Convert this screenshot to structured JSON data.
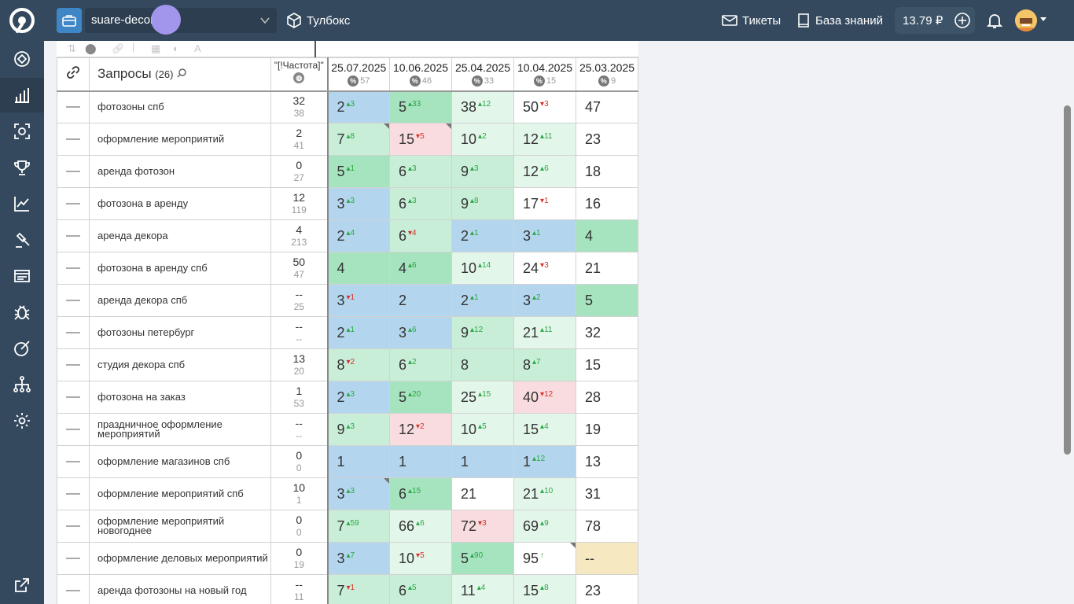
{
  "project": {
    "name": "suare-decor"
  },
  "toolbox": {
    "label": "Тулбокс"
  },
  "tickets": {
    "label": "Тикеты"
  },
  "knowledge": {
    "label": "База знаний"
  },
  "balance": {
    "value": "13.79 ₽"
  },
  "sidebar": {
    "items": [
      "dashboard-icon",
      "analytics-icon",
      "scan-icon",
      "trophy-icon",
      "trend-icon",
      "gavel-icon",
      "reports-icon",
      "bug-icon",
      "edit-icon",
      "sitemap-icon",
      "settings-icon",
      "external-icon"
    ],
    "active": "analytics-icon"
  },
  "table": {
    "header": {
      "queries_label": "Запросы",
      "queries_count": "(26)",
      "freq_label": "\"[!Частота]\"",
      "dates": [
        {
          "date": "25.07.2025",
          "count": "57"
        },
        {
          "date": "10.06.2025",
          "count": "46"
        },
        {
          "date": "25.04.2025",
          "count": "33"
        },
        {
          "date": "10.04.2025",
          "count": "15"
        },
        {
          "date": "25.03.2025",
          "count": "9"
        }
      ]
    },
    "rows": [
      {
        "query": "фотозоны спб",
        "f1": "32",
        "f2": "38",
        "cells": [
          {
            "v": "2",
            "d": "3",
            "t": "up",
            "bg": "bg-blue"
          },
          {
            "v": "5",
            "d": "33",
            "t": "up",
            "bg": "bg-g1"
          },
          {
            "v": "38",
            "d": "12",
            "t": "up",
            "bg": "bg-g3"
          },
          {
            "v": "50",
            "d": "3",
            "t": "dn",
            "bg": "bg-white"
          },
          {
            "v": "47",
            "d": "",
            "t": "",
            "bg": "bg-white"
          }
        ]
      },
      {
        "query": "оформление мероприятий",
        "f1": "2",
        "f2": "41",
        "cells": [
          {
            "v": "7",
            "d": "8",
            "t": "up",
            "bg": "bg-g2",
            "corner": true
          },
          {
            "v": "15",
            "d": "5",
            "t": "dn",
            "bg": "bg-red",
            "corner": true
          },
          {
            "v": "10",
            "d": "2",
            "t": "up",
            "bg": "bg-g3"
          },
          {
            "v": "12",
            "d": "11",
            "t": "up",
            "bg": "bg-g3"
          },
          {
            "v": "23",
            "d": "",
            "t": "",
            "bg": "bg-white"
          }
        ]
      },
      {
        "query": "аренда фотозон",
        "f1": "0",
        "f2": "27",
        "cells": [
          {
            "v": "5",
            "d": "1",
            "t": "up",
            "bg": "bg-g1"
          },
          {
            "v": "6",
            "d": "3",
            "t": "up",
            "bg": "bg-g2"
          },
          {
            "v": "9",
            "d": "3",
            "t": "up",
            "bg": "bg-g2"
          },
          {
            "v": "12",
            "d": "6",
            "t": "up",
            "bg": "bg-g3"
          },
          {
            "v": "18",
            "d": "",
            "t": "",
            "bg": "bg-white"
          }
        ]
      },
      {
        "query": "фотозона в аренду",
        "f1": "12",
        "f2": "119",
        "cells": [
          {
            "v": "3",
            "d": "3",
            "t": "up",
            "bg": "bg-blue"
          },
          {
            "v": "6",
            "d": "3",
            "t": "up",
            "bg": "bg-g2"
          },
          {
            "v": "9",
            "d": "8",
            "t": "up",
            "bg": "bg-g2"
          },
          {
            "v": "17",
            "d": "1",
            "t": "dn",
            "bg": "bg-white"
          },
          {
            "v": "16",
            "d": "",
            "t": "",
            "bg": "bg-white"
          }
        ]
      },
      {
        "query": "аренда декора",
        "f1": "4",
        "f2": "213",
        "cells": [
          {
            "v": "2",
            "d": "4",
            "t": "up",
            "bg": "bg-blue"
          },
          {
            "v": "6",
            "d": "4",
            "t": "dn",
            "bg": "bg-g2"
          },
          {
            "v": "2",
            "d": "1",
            "t": "up",
            "bg": "bg-blue"
          },
          {
            "v": "3",
            "d": "1",
            "t": "up",
            "bg": "bg-blue"
          },
          {
            "v": "4",
            "d": "",
            "t": "",
            "bg": "bg-g1"
          }
        ]
      },
      {
        "query": "фотозона в аренду спб",
        "f1": "50",
        "f2": "47",
        "cells": [
          {
            "v": "4",
            "d": "",
            "t": "",
            "bg": "bg-g1"
          },
          {
            "v": "4",
            "d": "6",
            "t": "up",
            "bg": "bg-g1"
          },
          {
            "v": "10",
            "d": "14",
            "t": "up",
            "bg": "bg-g3"
          },
          {
            "v": "24",
            "d": "3",
            "t": "dn",
            "bg": "bg-white"
          },
          {
            "v": "21",
            "d": "",
            "t": "",
            "bg": "bg-white"
          }
        ]
      },
      {
        "query": "аренда декора спб",
        "f1": "--",
        "f2": "25",
        "cells": [
          {
            "v": "3",
            "d": "1",
            "t": "dn",
            "bg": "bg-blue"
          },
          {
            "v": "2",
            "d": "",
            "t": "",
            "bg": "bg-blue"
          },
          {
            "v": "2",
            "d": "1",
            "t": "up",
            "bg": "bg-blue"
          },
          {
            "v": "3",
            "d": "2",
            "t": "up",
            "bg": "bg-blue"
          },
          {
            "v": "5",
            "d": "",
            "t": "",
            "bg": "bg-g1"
          }
        ]
      },
      {
        "query": "фотозоны петербург",
        "f1": "--",
        "f2": "--",
        "cells": [
          {
            "v": "2",
            "d": "1",
            "t": "up",
            "bg": "bg-blue"
          },
          {
            "v": "3",
            "d": "6",
            "t": "up",
            "bg": "bg-blue"
          },
          {
            "v": "9",
            "d": "12",
            "t": "up",
            "bg": "bg-g2"
          },
          {
            "v": "21",
            "d": "11",
            "t": "up",
            "bg": "bg-g3"
          },
          {
            "v": "32",
            "d": "",
            "t": "",
            "bg": "bg-white"
          }
        ]
      },
      {
        "query": "студия декора спб",
        "f1": "13",
        "f2": "20",
        "cells": [
          {
            "v": "8",
            "d": "2",
            "t": "dn",
            "bg": "bg-g2"
          },
          {
            "v": "6",
            "d": "2",
            "t": "up",
            "bg": "bg-g2"
          },
          {
            "v": "8",
            "d": "",
            "t": "",
            "bg": "bg-g2"
          },
          {
            "v": "8",
            "d": "7",
            "t": "up",
            "bg": "bg-g2"
          },
          {
            "v": "15",
            "d": "",
            "t": "",
            "bg": "bg-white"
          }
        ]
      },
      {
        "query": "фотозона на заказ",
        "f1": "1",
        "f2": "53",
        "cells": [
          {
            "v": "2",
            "d": "3",
            "t": "up",
            "bg": "bg-blue"
          },
          {
            "v": "5",
            "d": "20",
            "t": "up",
            "bg": "bg-g1"
          },
          {
            "v": "25",
            "d": "15",
            "t": "up",
            "bg": "bg-g3"
          },
          {
            "v": "40",
            "d": "12",
            "t": "dn",
            "bg": "bg-red"
          },
          {
            "v": "28",
            "d": "",
            "t": "",
            "bg": "bg-white"
          }
        ]
      },
      {
        "query": "праздничное оформление мероприятий",
        "f1": "--",
        "f2": "--",
        "cells": [
          {
            "v": "9",
            "d": "3",
            "t": "up",
            "bg": "bg-g2"
          },
          {
            "v": "12",
            "d": "2",
            "t": "dn",
            "bg": "bg-red"
          },
          {
            "v": "10",
            "d": "5",
            "t": "up",
            "bg": "bg-g3"
          },
          {
            "v": "15",
            "d": "4",
            "t": "up",
            "bg": "bg-g3"
          },
          {
            "v": "19",
            "d": "",
            "t": "",
            "bg": "bg-white"
          }
        ]
      },
      {
        "query": "оформление магазинов спб",
        "f1": "0",
        "f2": "0",
        "cells": [
          {
            "v": "1",
            "d": "",
            "t": "",
            "bg": "bg-blue"
          },
          {
            "v": "1",
            "d": "",
            "t": "",
            "bg": "bg-blue"
          },
          {
            "v": "1",
            "d": "",
            "t": "",
            "bg": "bg-blue"
          },
          {
            "v": "1",
            "d": "12",
            "t": "up",
            "bg": "bg-blue"
          },
          {
            "v": "13",
            "d": "",
            "t": "",
            "bg": "bg-white"
          }
        ]
      },
      {
        "query": "оформление мероприятий спб",
        "f1": "10",
        "f2": "1",
        "cells": [
          {
            "v": "3",
            "d": "3",
            "t": "up",
            "bg": "bg-blue",
            "corner": true
          },
          {
            "v": "6",
            "d": "15",
            "t": "up",
            "bg": "bg-g1"
          },
          {
            "v": "21",
            "d": "",
            "t": "",
            "bg": "bg-white"
          },
          {
            "v": "21",
            "d": "10",
            "t": "up",
            "bg": "bg-g3"
          },
          {
            "v": "31",
            "d": "",
            "t": "",
            "bg": "bg-white"
          }
        ]
      },
      {
        "query": "оформление мероприятий новогоднее",
        "f1": "0",
        "f2": "0",
        "cells": [
          {
            "v": "7",
            "d": "59",
            "t": "up",
            "bg": "bg-g2"
          },
          {
            "v": "66",
            "d": "6",
            "t": "up",
            "bg": "bg-g3"
          },
          {
            "v": "72",
            "d": "3",
            "t": "dn",
            "bg": "bg-red"
          },
          {
            "v": "69",
            "d": "9",
            "t": "up",
            "bg": "bg-g3"
          },
          {
            "v": "78",
            "d": "",
            "t": "",
            "bg": "bg-white"
          }
        ]
      },
      {
        "query": "оформление деловых мероприятий",
        "f1": "0",
        "f2": "19",
        "cells": [
          {
            "v": "3",
            "d": "7",
            "t": "up",
            "bg": "bg-blue"
          },
          {
            "v": "10",
            "d": "5",
            "t": "dn",
            "bg": "bg-g3"
          },
          {
            "v": "5",
            "d": "90",
            "t": "up",
            "bg": "bg-g1"
          },
          {
            "v": "95",
            "d": "↑",
            "t": "up",
            "bg": "bg-white",
            "corner": true
          },
          {
            "v": "--",
            "d": "",
            "t": "",
            "bg": "bg-yel"
          }
        ]
      },
      {
        "query": "аренда фотозоны на новый год",
        "f1": "--",
        "f2": "11",
        "cells": [
          {
            "v": "7",
            "d": "1",
            "t": "dn",
            "bg": "bg-g2"
          },
          {
            "v": "6",
            "d": "5",
            "t": "up",
            "bg": "bg-g2"
          },
          {
            "v": "11",
            "d": "4",
            "t": "up",
            "bg": "bg-g3"
          },
          {
            "v": "15",
            "d": "8",
            "t": "up",
            "bg": "bg-g3"
          },
          {
            "v": "23",
            "d": "",
            "t": "",
            "bg": "bg-white"
          }
        ]
      }
    ]
  }
}
